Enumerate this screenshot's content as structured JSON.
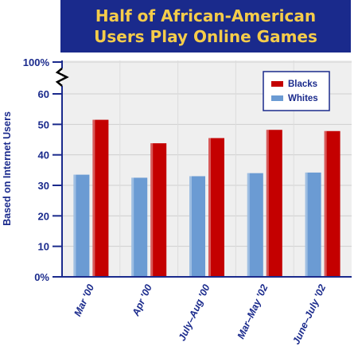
{
  "chart_data": {
    "type": "bar",
    "title_lines": [
      "Half of African-American",
      "Users Play Online Games"
    ],
    "ylabel": "Based on Internet Users",
    "xlabel": "",
    "categories": [
      "Mar '00",
      "Apr '00",
      "July–Aug '00",
      "Mar–May '02",
      "June–July '02"
    ],
    "series": [
      {
        "name": "Blacks",
        "values": [
          51.5,
          43.8,
          45.5,
          48.2,
          47.8
        ],
        "color": "#c40000"
      },
      {
        "name": "Whites",
        "values": [
          33.5,
          32.5,
          33.0,
          34.0,
          34.2
        ],
        "color": "#6b9bd3"
      }
    ],
    "ylim": [
      0,
      60
    ],
    "yticks": [
      "0%",
      "10",
      "20",
      "30",
      "40",
      "50",
      "60"
    ],
    "y_break_label": "100%",
    "legend_placement": "top-right",
    "grid": true
  }
}
